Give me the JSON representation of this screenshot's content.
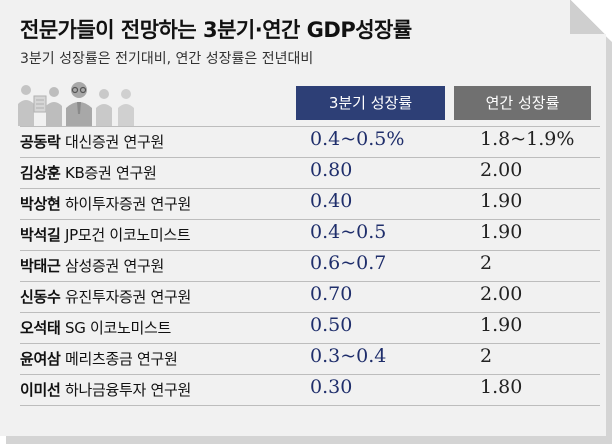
{
  "chart_data": {
    "type": "table",
    "title": "전문가들이 전망하는 3분기·연간 GDP성장률",
    "subtitle": "3분기 성장률은 전기대비, 연간 성장률은 전년대비",
    "columns": [
      "3분기 성장률",
      "연간 성장률"
    ],
    "rows": [
      {
        "name": "공동락",
        "affiliation": "대신증권 연구원",
        "q3": "0.4~0.5%",
        "annual": "1.8~1.9%"
      },
      {
        "name": "김상훈",
        "affiliation": "KB증권 연구원",
        "q3": "0.80",
        "annual": "2.00"
      },
      {
        "name": "박상현",
        "affiliation": "하이투자증권 연구원",
        "q3": "0.40",
        "annual": "1.90"
      },
      {
        "name": "박석길",
        "affiliation": "JP모건 이코노미스트",
        "q3": "0.4~0.5",
        "annual": "1.90"
      },
      {
        "name": "박태근",
        "affiliation": "삼성증권 연구원",
        "q3": "0.6~0.7",
        "annual": "2"
      },
      {
        "name": "신동수",
        "affiliation": "유진투자증권 연구원",
        "q3": "0.70",
        "annual": "2.00"
      },
      {
        "name": "오석태",
        "affiliation": "SG 이코노미스트",
        "q3": "0.50",
        "annual": "1.90"
      },
      {
        "name": "윤여삼",
        "affiliation": "메리츠종금 연구원",
        "q3": "0.3~0.4",
        "annual": "2"
      },
      {
        "name": "이미선",
        "affiliation": "하나금융투자 연구원",
        "q3": "0.30",
        "annual": "1.80"
      }
    ]
  },
  "colors": {
    "q3_header": "#2d3f76",
    "annual_header": "#707070",
    "q3_values": "#1f2e6b"
  },
  "icons": [
    "experts-illustration-icon"
  ]
}
